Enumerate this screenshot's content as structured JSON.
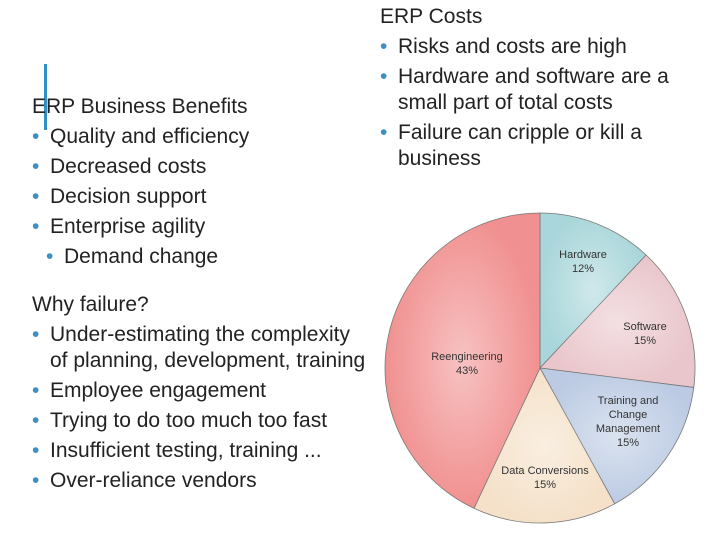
{
  "benefits": {
    "heading": "ERP Business Benefits",
    "items": [
      "Quality and efficiency",
      "Decreased costs",
      "Decision support",
      "Enterprise agility"
    ],
    "subitems": [
      "Demand change"
    ]
  },
  "failure": {
    "heading": "Why failure?",
    "items": [
      "Under-estimating the complexity of planning, development, training",
      "Employee engagement",
      "Trying to do too much too fast",
      "Insufficient testing, training ...",
      "Over-reliance vendors"
    ]
  },
  "costs": {
    "heading": "ERP Costs",
    "items": [
      "Risks and costs are high",
      "Hardware and software are a small part of total costs",
      "Failure can cripple or kill a business"
    ]
  },
  "chart_data": {
    "type": "pie",
    "categories": [
      "Hardware",
      "Software",
      "Training and Change Management",
      "Data Conversions",
      "Reengineering"
    ],
    "values": [
      12,
      15,
      15,
      15,
      43
    ],
    "value_labels": [
      "12%",
      "15%",
      "15%",
      "15%",
      "43%"
    ],
    "colors": [
      "#a9d6da",
      "#e9c6cb",
      "#bccbe3",
      "#f5e1c9",
      "#f19090"
    ]
  }
}
